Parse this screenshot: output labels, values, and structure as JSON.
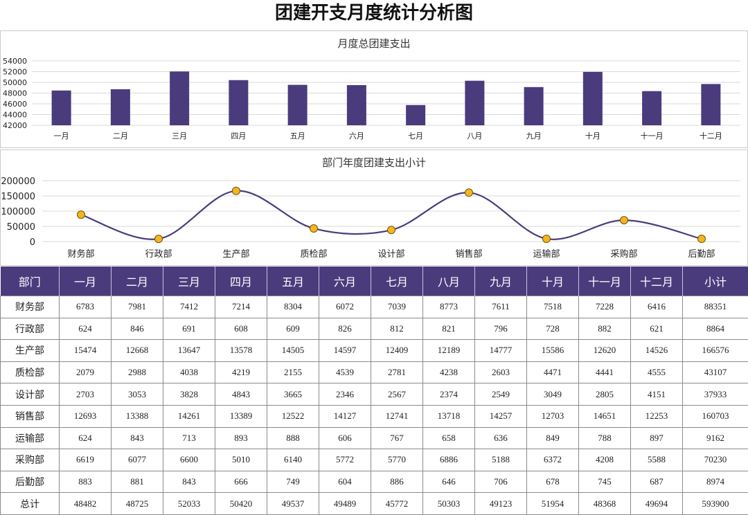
{
  "page": {
    "title": "团建开支月度统计分析图"
  },
  "colors": {
    "accent": "#4a3b7d",
    "line": "#4a3b7d",
    "marker": "#f5b51c"
  },
  "chart_data": [
    {
      "type": "bar",
      "title": "月度总团建支出",
      "categories": [
        "一月",
        "二月",
        "三月",
        "四月",
        "五月",
        "六月",
        "七月",
        "八月",
        "九月",
        "十月",
        "十一月",
        "十二月"
      ],
      "values": [
        48482,
        48725,
        52033,
        50420,
        49537,
        49489,
        45772,
        50303,
        49123,
        51954,
        48368,
        49694
      ],
      "ylim": [
        42000,
        54000
      ],
      "yticks": [
        "42000",
        "44000",
        "46000",
        "48000",
        "50000",
        "52000",
        "54000"
      ],
      "grid": true
    },
    {
      "type": "line",
      "title": "部门年度团建支出小计",
      "categories": [
        "财务部",
        "行政部",
        "生产部",
        "质检部",
        "设计部",
        "销售部",
        "运输部",
        "采购部",
        "后勤部"
      ],
      "values": [
        88351,
        8864,
        166576,
        43107,
        37933,
        160703,
        9162,
        70230,
        8974
      ],
      "ylim": [
        0,
        200000
      ],
      "yticks": [
        "0",
        "50000",
        "100000",
        "150000",
        "200000"
      ],
      "grid": true,
      "smooth": true
    }
  ],
  "table": {
    "headers": [
      "部门",
      "一月",
      "二月",
      "三月",
      "四月",
      "五月",
      "六月",
      "七月",
      "八月",
      "九月",
      "十月",
      "十一月",
      "十二月",
      "小计"
    ],
    "rows": [
      [
        "财务部",
        "6783",
        "7981",
        "7412",
        "7214",
        "8304",
        "6072",
        "7039",
        "8773",
        "7611",
        "7518",
        "7228",
        "6416",
        "88351"
      ],
      [
        "行政部",
        "624",
        "846",
        "691",
        "608",
        "609",
        "826",
        "812",
        "821",
        "796",
        "728",
        "882",
        "621",
        "8864"
      ],
      [
        "生产部",
        "15474",
        "12668",
        "13647",
        "13578",
        "14505",
        "14597",
        "12409",
        "12189",
        "14777",
        "15586",
        "12620",
        "14526",
        "166576"
      ],
      [
        "质检部",
        "2079",
        "2988",
        "4038",
        "4219",
        "2155",
        "4539",
        "2781",
        "4238",
        "2603",
        "4471",
        "4441",
        "4555",
        "43107"
      ],
      [
        "设计部",
        "2703",
        "3053",
        "3828",
        "4843",
        "3665",
        "2346",
        "2567",
        "2374",
        "2549",
        "3049",
        "2805",
        "4151",
        "37933"
      ],
      [
        "销售部",
        "12693",
        "13388",
        "14261",
        "13389",
        "12522",
        "14127",
        "12741",
        "13718",
        "14257",
        "12703",
        "14651",
        "12253",
        "160703"
      ],
      [
        "运输部",
        "624",
        "843",
        "713",
        "893",
        "888",
        "606",
        "767",
        "658",
        "636",
        "849",
        "788",
        "897",
        "9162"
      ],
      [
        "采购部",
        "6619",
        "6077",
        "6600",
        "5010",
        "6140",
        "5772",
        "5770",
        "6886",
        "5188",
        "6372",
        "4208",
        "5588",
        "70230"
      ],
      [
        "后勤部",
        "883",
        "881",
        "843",
        "666",
        "749",
        "604",
        "886",
        "646",
        "706",
        "678",
        "745",
        "687",
        "8974"
      ],
      [
        "总计",
        "48482",
        "48725",
        "52033",
        "50420",
        "49537",
        "49489",
        "45772",
        "50303",
        "49123",
        "51954",
        "48368",
        "49694",
        "593900"
      ]
    ]
  }
}
